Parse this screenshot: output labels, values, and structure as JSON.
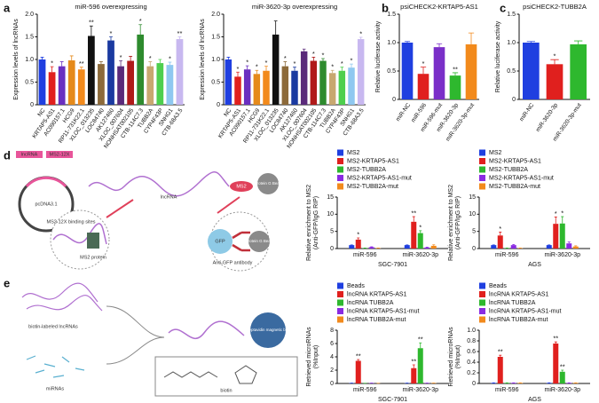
{
  "panel_labels": [
    "a",
    "b",
    "c",
    "d",
    "e"
  ],
  "diagrams": {
    "d": {
      "labels": [
        "lncRNA",
        "MS2-12X",
        "pcDNA3.1",
        "lncRNA",
        "MS2",
        "Protein G Bead",
        "MS2-12X binding sites",
        "MS2 protein",
        "GFP",
        "Anti-GFP antibody",
        "Protein G Bead"
      ]
    },
    "e": {
      "labels": [
        "biotin-labeled lncRNAs",
        "miRNAs",
        "Streptavidin magnetic bead",
        "biotin"
      ]
    }
  },
  "chart_data": [
    {
      "type": "bar",
      "title": "miR-596 overexpressing",
      "ylabel": [
        "Expression levels of lncRNAs"
      ],
      "categories": [
        "NC",
        "KRTAP5-AS1",
        "AC090157.1",
        "HCG9",
        "RP11-731K22.1",
        "XLOC_013235",
        "LOC84740",
        "AK127460",
        "XLOC_007604",
        "NONHSAT002105",
        "CTB-114C7.3",
        "TUBB2A",
        "CYP4F43P",
        "SNHG1",
        "CTB-68A3.5"
      ],
      "values": [
        1.0,
        0.72,
        0.85,
        0.98,
        0.78,
        1.52,
        0.9,
        1.42,
        0.85,
        0.97,
        1.55,
        0.85,
        0.92,
        0.88,
        1.45
      ],
      "errors": [
        0.05,
        0.12,
        0.1,
        0.1,
        0.05,
        0.22,
        0.05,
        0.08,
        0.12,
        0.1,
        0.22,
        0.1,
        0.08,
        0.06,
        0.05
      ],
      "annotations": [
        null,
        "*",
        null,
        null,
        "**",
        "**",
        null,
        "*",
        "*",
        null,
        "*",
        "*",
        null,
        "*",
        "**"
      ],
      "colors": [
        "#1f3fe0",
        "#e0201e",
        "#6a2fc0",
        "#e58a1b",
        "#f28a1c",
        "#111111",
        "#8c6a3a",
        "#1a3aa0",
        "#5a2a7a",
        "#b01a1a",
        "#2e8b2e",
        "#c8a870",
        "#4ecf4e",
        "#8fc8f0",
        "#c8b8f0"
      ],
      "ylim": [
        0,
        2
      ],
      "yticks": [
        0,
        0.5,
        {
          "value": 1,
          "label": "1.0"
        },
        1.5,
        {
          "value": 2,
          "label": "2.0"
        }
      ]
    },
    {
      "type": "bar",
      "title": "miR-3620-3p overexpressing",
      "ylabel": [
        "Expression levels of lncRNAs"
      ],
      "categories": [
        "NC",
        "KRTAP5-AS1",
        "AC090157.1",
        "HCG9",
        "RP11-731K22.1",
        "XLOC_013235",
        "LOC84740",
        "AK127460",
        "XLOC_007604",
        "NONHSAT002105",
        "CTB-114C7.3",
        "TUBB2A",
        "CYP4F43P",
        "SNHG1",
        "CTB-68A3.5"
      ],
      "values": [
        1.0,
        0.62,
        0.78,
        0.68,
        0.75,
        1.55,
        0.85,
        0.75,
        1.18,
        0.97,
        0.97,
        0.7,
        0.75,
        0.82,
        1.45
      ],
      "errors": [
        0.05,
        0.1,
        0.08,
        0.08,
        0.1,
        0.3,
        0.1,
        0.08,
        0.05,
        0.08,
        0.05,
        0.06,
        0.08,
        0.08,
        0.04
      ],
      "annotations": [
        null,
        "*",
        "*",
        "*",
        "*",
        null,
        "*",
        "*",
        null,
        "*",
        "*",
        "*",
        "*",
        "*",
        "*"
      ],
      "colors": [
        "#1f3fe0",
        "#e0201e",
        "#6a2fc0",
        "#e58a1b",
        "#f28a1c",
        "#111111",
        "#8c6a3a",
        "#1a3aa0",
        "#5a2a7a",
        "#b01a1a",
        "#2e8b2e",
        "#c8a870",
        "#4ecf4e",
        "#8fc8f0",
        "#c8b8f0"
      ],
      "ylim": [
        0,
        2
      ],
      "yticks": [
        0,
        0.5,
        {
          "value": 1,
          "label": "1.0"
        },
        1.5,
        {
          "value": 2,
          "label": "2.0"
        }
      ]
    },
    {
      "type": "bar",
      "title": "psiCHECK2-KRTAP5-AS1",
      "ylabel": [
        "Relative luciferase activity"
      ],
      "categories": [
        "miR-NC",
        "miR-596",
        "miR-596-mut",
        "miR-3620-3p",
        "miR-3620-3p-mut"
      ],
      "values": [
        1.0,
        0.45,
        0.92,
        0.42,
        0.97
      ],
      "errors": [
        0.02,
        0.12,
        0.06,
        0.05,
        0.2
      ],
      "annotations": [
        null,
        "*",
        null,
        "**",
        null
      ],
      "colors": [
        "#1f3fe0",
        "#e0201e",
        "#7a2fc8",
        "#2eb82e",
        "#f28a1c"
      ],
      "ylim": [
        0,
        1.5
      ],
      "yticks": [
        0,
        0.5,
        {
          "value": 1,
          "label": "1.0"
        },
        1.5
      ]
    },
    {
      "type": "bar",
      "title": "psiCHECK2-TUBB2A",
      "ylabel": [
        "Relative luciferase activity"
      ],
      "categories": [
        "miR-NC",
        "miR-3620-3p",
        "miR-3620-3p-mut"
      ],
      "values": [
        1.0,
        0.62,
        0.97
      ],
      "errors": [
        0.02,
        0.08,
        0.06
      ],
      "annotations": [
        null,
        "*",
        null
      ],
      "colors": [
        "#1f3fe0",
        "#e0201e",
        "#2eb82e"
      ],
      "ylim": [
        0,
        1.5
      ],
      "yticks": [
        0,
        0.5,
        {
          "value": 1,
          "label": "1.0"
        },
        1.5
      ]
    },
    {
      "type": "grouped-bar",
      "ylabel": [
        "Relative enrichment to MS2",
        "(Anti-GFP/IgG RIP)"
      ],
      "xlabel": "SGC-7901",
      "categories": [
        "miR-596",
        "miR-3620-3p"
      ],
      "legend": "top-left",
      "series": [
        {
          "name": "MS2",
          "color": "#1f3fe0",
          "values": [
            1,
            1
          ],
          "errors": [
            0.05,
            0.05
          ],
          "annotations": [
            null,
            null
          ]
        },
        {
          "name": "MS2-KRTAP5-AS1",
          "color": "#e0201e",
          "values": [
            2.6,
            7.8
          ],
          "errors": [
            0.5,
            1.5
          ],
          "annotations": [
            "*",
            "**"
          ]
        },
        {
          "name": "MS2-TUBB2A",
          "color": "#2eb82e",
          "values": [
            0.1,
            4.5
          ],
          "errors": [
            0.05,
            0.7
          ],
          "annotations": [
            null,
            "*"
          ]
        },
        {
          "name": "MS2-KRTAP5-AS1-mut",
          "color": "#8a2be2",
          "values": [
            0.4,
            0.3
          ],
          "errors": [
            0.1,
            0.1
          ],
          "annotations": [
            null,
            null
          ]
        },
        {
          "name": "MS2-TUBB2A-mut",
          "color": "#f28a1c",
          "values": [
            0.1,
            0.8
          ],
          "errors": [
            0.05,
            0.3
          ],
          "annotations": [
            null,
            null
          ]
        }
      ],
      "ylim": [
        0,
        15
      ],
      "yticks": [
        0,
        5,
        10,
        15
      ]
    },
    {
      "type": "grouped-bar",
      "ylabel": [
        "Relative enrichment to MS2",
        "(Anti-GFP/IgG RIP)"
      ],
      "xlabel": "AGS",
      "categories": [
        "miR-596",
        "miR-3620-3p"
      ],
      "legend": "top-left",
      "series": [
        {
          "name": "MS2",
          "color": "#1f3fe0",
          "values": [
            1,
            1
          ],
          "errors": [
            0.05,
            0.05
          ],
          "annotations": [
            null,
            null
          ]
        },
        {
          "name": "MS2-KRTAP5-AS1",
          "color": "#e0201e",
          "values": [
            3.8,
            7.2
          ],
          "errors": [
            1.0,
            2.0
          ],
          "annotations": [
            "*",
            "*"
          ]
        },
        {
          "name": "MS2-TUBB2A",
          "color": "#2eb82e",
          "values": [
            0.1,
            7.3
          ],
          "errors": [
            0.05,
            2.0
          ],
          "annotations": [
            null,
            "*"
          ]
        },
        {
          "name": "MS2-KRTAP5-AS1-mut",
          "color": "#8a2be2",
          "values": [
            1.0,
            1.5
          ],
          "errors": [
            0.2,
            0.4
          ],
          "annotations": [
            null,
            null
          ]
        },
        {
          "name": "MS2-TUBB2A-mut",
          "color": "#f28a1c",
          "values": [
            0.1,
            0.6
          ],
          "errors": [
            0.05,
            0.2
          ],
          "annotations": [
            null,
            null
          ]
        }
      ],
      "ylim": [
        0,
        15
      ],
      "yticks": [
        0,
        5,
        10,
        15
      ]
    },
    {
      "type": "grouped-bar",
      "ylabel": [
        "Retrieved microRNAs",
        "(%Input)"
      ],
      "xlabel": "SGC-7901",
      "categories": [
        "miR-596",
        "miR-3620-3p"
      ],
      "legend": "top-left",
      "series": [
        {
          "name": "Beads",
          "color": "#1f3fe0",
          "values": [
            0.05,
            0.05
          ],
          "errors": [
            0.02,
            0.02
          ],
          "annotations": [
            null,
            null
          ]
        },
        {
          "name": "lncRNA KRTAP5-AS1",
          "color": "#e0201e",
          "values": [
            3.4,
            2.3
          ],
          "errors": [
            0.2,
            0.5
          ],
          "annotations": [
            "**",
            "**"
          ]
        },
        {
          "name": "lncRNA TUBB2A",
          "color": "#2eb82e",
          "values": [
            0.02,
            5.3
          ],
          "errors": [
            0.01,
            0.8
          ],
          "annotations": [
            null,
            "**"
          ]
        },
        {
          "name": "lncRNA KRTAP5-AS1-mut",
          "color": "#8a2be2",
          "values": [
            0.05,
            0.05
          ],
          "errors": [
            0.02,
            0.02
          ],
          "annotations": [
            null,
            null
          ]
        },
        {
          "name": "lncRNA TUBB2A-mut",
          "color": "#f28a1c",
          "values": [
            0.02,
            0.05
          ],
          "errors": [
            0.01,
            0.02
          ],
          "annotations": [
            null,
            null
          ]
        }
      ],
      "ylim": [
        0,
        8
      ],
      "yticks": [
        0,
        2,
        4,
        6,
        8
      ]
    },
    {
      "type": "grouped-bar",
      "ylabel": [
        "Retrieved microRNAs",
        "(%Input)"
      ],
      "xlabel": "AGS",
      "categories": [
        "miR-596",
        "miR-3620-3p"
      ],
      "legend": "top-left",
      "series": [
        {
          "name": "Beads",
          "color": "#1f3fe0",
          "values": [
            0.01,
            0.01
          ],
          "errors": [
            0.002,
            0.002
          ],
          "annotations": [
            null,
            null
          ]
        },
        {
          "name": "lncRNA KRTAP5-AS1",
          "color": "#e0201e",
          "values": [
            0.5,
            0.75
          ],
          "errors": [
            0.03,
            0.03
          ],
          "annotations": [
            "**",
            "**"
          ]
        },
        {
          "name": "lncRNA TUBB2A",
          "color": "#2eb82e",
          "values": [
            0.01,
            0.22
          ],
          "errors": [
            0.002,
            0.03
          ],
          "annotations": [
            null,
            "**"
          ]
        },
        {
          "name": "lncRNA KRTAP5-AS1-mut",
          "color": "#8a2be2",
          "values": [
            0.01,
            0.01
          ],
          "errors": [
            0.002,
            0.002
          ],
          "annotations": [
            null,
            null
          ]
        },
        {
          "name": "lncRNA TUBB2A-mut",
          "color": "#f28a1c",
          "values": [
            0.01,
            0.01
          ],
          "errors": [
            0.002,
            0.002
          ],
          "annotations": [
            null,
            null
          ]
        }
      ],
      "ylim": [
        0,
        1
      ],
      "yticks": [
        0,
        0.2,
        0.4,
        0.6,
        0.8,
        {
          "value": 1,
          "label": "1.0"
        }
      ]
    }
  ]
}
